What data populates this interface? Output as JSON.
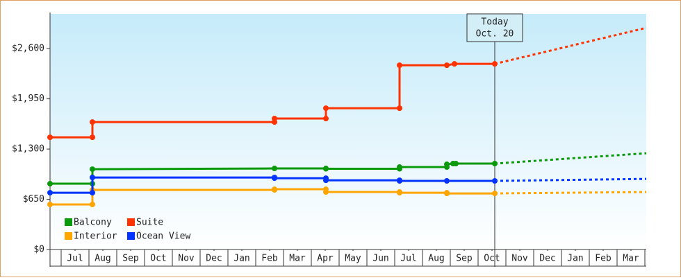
{
  "chart_data": {
    "type": "line",
    "ylim": [
      0,
      3050
    ],
    "yticks": [
      {
        "value": 0,
        "label": "$0"
      },
      {
        "value": 650,
        "label": "$650"
      },
      {
        "value": 1300,
        "label": "$1,300"
      },
      {
        "value": 1950,
        "label": "$1,950"
      },
      {
        "value": 2600,
        "label": "$2,600"
      }
    ],
    "xlim": [
      -0.4,
      21.05
    ],
    "xticks": [
      {
        "value": 0.5,
        "label": "Jul"
      },
      {
        "value": 1.5,
        "label": "Aug"
      },
      {
        "value": 2.5,
        "label": "Sep"
      },
      {
        "value": 3.5,
        "label": "Oct"
      },
      {
        "value": 4.5,
        "label": "Nov"
      },
      {
        "value": 5.5,
        "label": "Dec"
      },
      {
        "value": 6.5,
        "label": "Jan"
      },
      {
        "value": 7.5,
        "label": "Feb"
      },
      {
        "value": 8.5,
        "label": "Mar"
      },
      {
        "value": 9.5,
        "label": "Apr"
      },
      {
        "value": 10.5,
        "label": "May"
      },
      {
        "value": 11.5,
        "label": "Jun"
      },
      {
        "value": 12.5,
        "label": "Jul"
      },
      {
        "value": 13.5,
        "label": "Aug"
      },
      {
        "value": 14.5,
        "label": "Sep"
      },
      {
        "value": 15.5,
        "label": "Oct"
      },
      {
        "value": 16.5,
        "label": "Nov"
      },
      {
        "value": 17.5,
        "label": "Dec"
      },
      {
        "value": 18.5,
        "label": "Jan"
      },
      {
        "value": 19.5,
        "label": "Feb"
      },
      {
        "value": 20.5,
        "label": "Mar"
      }
    ],
    "annotation": {
      "lines": [
        "Today",
        "Oct. 20"
      ],
      "x": 15.6
    },
    "series": [
      {
        "name": "Balcony",
        "color": "#0a990a",
        "x": [
          -0.4,
          1.125,
          1.125,
          7.675,
          9.525,
          9.525,
          12.175,
          12.175,
          13.875,
          13.875,
          14.1,
          14.2,
          15.6
        ],
        "values": [
          852,
          852,
          1040,
          1049,
          1049,
          1045,
          1045,
          1067,
          1067,
          1103,
          1112,
          1112,
          1112
        ],
        "forecast": {
          "x": 21.05,
          "value": 1246
        }
      },
      {
        "name": "Suite",
        "color": "#ff3300",
        "x": [
          -0.4,
          1.125,
          1.125,
          7.675,
          7.675,
          9.525,
          9.525,
          12.175,
          12.175,
          13.875,
          14.15,
          15.6
        ],
        "values": [
          1452,
          1452,
          1650,
          1650,
          1695,
          1695,
          1829,
          1829,
          2385,
          2385,
          2403,
          2403
        ],
        "forecast": {
          "x": 21.05,
          "value": 2869
        }
      },
      {
        "name": "Interior",
        "color": "#ffa500",
        "x": [
          -0.4,
          1.125,
          1.125,
          7.675,
          7.675,
          9.525,
          9.525,
          12.175,
          12.175,
          13.875,
          13.875,
          15.6
        ],
        "values": [
          583,
          583,
          771,
          771,
          780,
          780,
          744,
          744,
          735,
          735,
          726,
          726
        ],
        "forecast": {
          "x": 21.05,
          "value": 744
        }
      },
      {
        "name": "Ocean View",
        "color": "#0033ff",
        "x": [
          -0.4,
          1.125,
          1.125,
          7.675,
          7.675,
          9.525,
          9.525,
          12.175,
          12.175,
          13.875,
          15.6
        ],
        "values": [
          735,
          735,
          932,
          932,
          923,
          923,
          896,
          896,
          888,
          888,
          888
        ],
        "forecast": {
          "x": 21.05,
          "value": 914
        }
      }
    ]
  }
}
